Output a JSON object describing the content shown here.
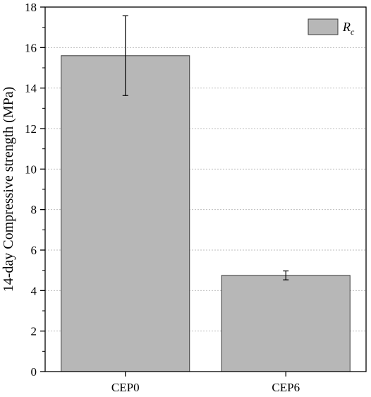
{
  "chart_data": {
    "type": "bar",
    "categories": [
      "CEP0",
      "CEP6"
    ],
    "series": [
      {
        "name": "Rc",
        "values": [
          15.6,
          4.75
        ],
        "errors": [
          1.97,
          0.22
        ]
      }
    ],
    "xlabel": "",
    "ylabel": "14-day Compressive strength (MPa)",
    "ylim": [
      0,
      18
    ],
    "yticks": [
      0,
      2,
      4,
      6,
      8,
      10,
      12,
      14,
      16,
      18
    ],
    "grid": true,
    "legend": {
      "position": "top-right",
      "label_main": "R",
      "label_sub": "c"
    },
    "colors": {
      "bar_fill": "#b7b7b7",
      "bar_stroke": "#3a3a3a",
      "grid": "#bfbfbf"
    }
  }
}
